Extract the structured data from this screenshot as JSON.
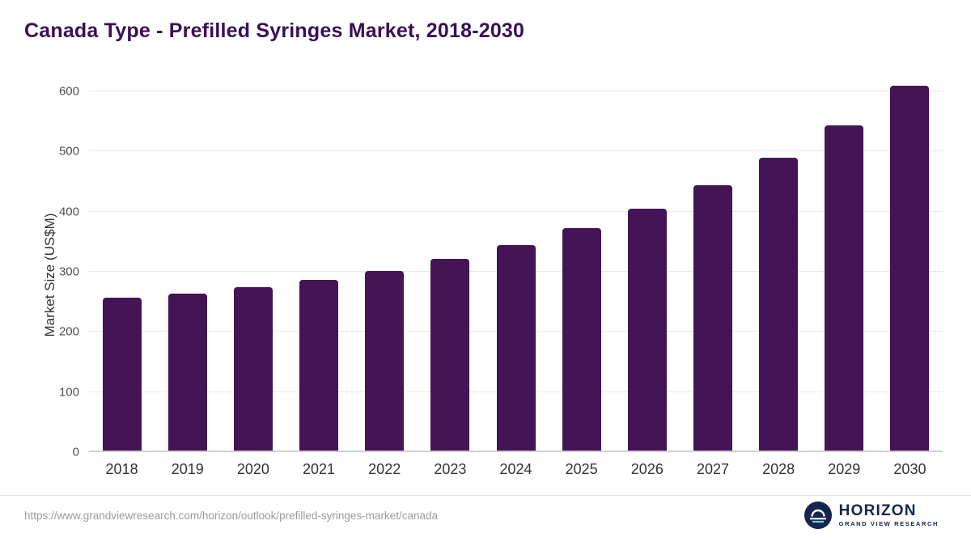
{
  "header": {
    "title": "Canada Type - Prefilled Syringes Market, 2018-2030"
  },
  "chart_data": {
    "type": "bar",
    "title": "Canada Type - Prefilled Syringes Market, 2018-2030",
    "categories": [
      "2018",
      "2019",
      "2020",
      "2021",
      "2022",
      "2023",
      "2024",
      "2025",
      "2026",
      "2027",
      "2028",
      "2029",
      "2030"
    ],
    "values": [
      257,
      264,
      274,
      286,
      302,
      321,
      345,
      372,
      405,
      444,
      490,
      544,
      610
    ],
    "xlabel": "",
    "ylabel": "Market Size (US$M)",
    "ylim": [
      0,
      600
    ],
    "ytick_step": 100,
    "yticks": [
      0,
      100,
      200,
      300,
      400,
      500,
      600
    ],
    "grid": true,
    "legend": "none",
    "bar_color": "#441457"
  },
  "footer": {
    "source_url": "https://www.grandviewresearch.com/horizon/outlook/prefilled-syringes-market/canada",
    "logo": {
      "icon": "horizon-circle-icon",
      "name": "HORIZON",
      "subtitle": "GRAND VIEW RESEARCH"
    }
  }
}
